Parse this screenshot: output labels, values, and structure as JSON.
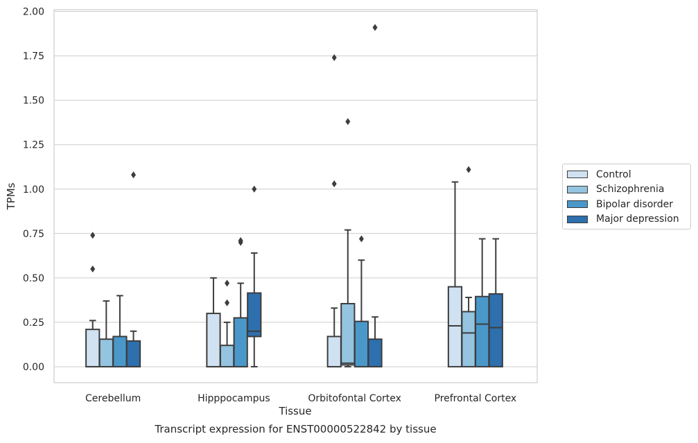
{
  "chart_data": {
    "type": "box",
    "xlabel": "Tissue",
    "ylabel": "TPMs",
    "caption": "Transcript expression for ENST00000522842 by tissue",
    "ylim": [
      -0.09,
      2.01
    ],
    "yticks": [
      "0.00",
      "0.25",
      "0.50",
      "0.75",
      "1.00",
      "1.25",
      "1.50",
      "1.75",
      "2.00"
    ],
    "grid": "horizontal",
    "legend_position": "right",
    "categories": [
      "Cerebellum",
      "Hipppocampus",
      "Orbitofontal Cortex",
      "Prefrontal Cortex"
    ],
    "series": [
      {
        "name": "Control",
        "color": "#d0e1f2",
        "boxes": [
          {
            "whisker_low": 0.0,
            "q1": 0.0,
            "median": 0.0,
            "q3": 0.21,
            "whisker_high": 0.26,
            "outliers": [
              0.55,
              0.74
            ]
          },
          {
            "whisker_low": 0.0,
            "q1": 0.0,
            "median": 0.0,
            "q3": 0.3,
            "whisker_high": 0.5,
            "outliers": []
          },
          {
            "whisker_low": 0.0,
            "q1": 0.0,
            "median": 0.0,
            "q3": 0.17,
            "whisker_high": 0.33,
            "outliers": [
              1.03,
              1.74
            ]
          },
          {
            "whisker_low": 0.0,
            "q1": 0.0,
            "median": 0.23,
            "q3": 0.45,
            "whisker_high": 1.04,
            "outliers": []
          }
        ]
      },
      {
        "name": "Schizophrenia",
        "color": "#94c4df",
        "boxes": [
          {
            "whisker_low": 0.0,
            "q1": 0.0,
            "median": 0.0,
            "q3": 0.155,
            "whisker_high": 0.37,
            "outliers": []
          },
          {
            "whisker_low": 0.0,
            "q1": 0.0,
            "median": 0.0,
            "q3": 0.12,
            "whisker_high": 0.25,
            "outliers": [
              0.36,
              0.47
            ]
          },
          {
            "whisker_low": 0.0,
            "q1": 0.01,
            "median": 0.02,
            "q3": 0.355,
            "whisker_high": 0.77,
            "outliers": [
              1.38
            ]
          },
          {
            "whisker_low": 0.0,
            "q1": 0.0,
            "median": 0.19,
            "q3": 0.31,
            "whisker_high": 0.39,
            "outliers": [
              1.11
            ]
          }
        ]
      },
      {
        "name": "Bipolar disorder",
        "color": "#4a98c9",
        "boxes": [
          {
            "whisker_low": 0.0,
            "q1": 0.0,
            "median": 0.0,
            "q3": 0.17,
            "whisker_high": 0.4,
            "outliers": []
          },
          {
            "whisker_low": 0.0,
            "q1": 0.0,
            "median": 0.0,
            "q3": 0.275,
            "whisker_high": 0.47,
            "outliers": [
              0.7,
              0.71
            ]
          },
          {
            "whisker_low": 0.0,
            "q1": 0.0,
            "median": 0.0,
            "q3": 0.255,
            "whisker_high": 0.6,
            "outliers": [
              0.72
            ]
          },
          {
            "whisker_low": 0.0,
            "q1": 0.0,
            "median": 0.24,
            "q3": 0.395,
            "whisker_high": 0.72,
            "outliers": []
          }
        ]
      },
      {
        "name": "Major depression",
        "color": "#2e6fae",
        "boxes": [
          {
            "whisker_low": 0.0,
            "q1": 0.0,
            "median": 0.0,
            "q3": 0.145,
            "whisker_high": 0.2,
            "outliers": [
              1.08
            ]
          },
          {
            "whisker_low": 0.0,
            "q1": 0.17,
            "median": 0.2,
            "q3": 0.415,
            "whisker_high": 0.64,
            "outliers": [
              1.0
            ]
          },
          {
            "whisker_low": 0.0,
            "q1": 0.0,
            "median": 0.0,
            "q3": 0.155,
            "whisker_high": 0.28,
            "outliers": [
              1.91
            ]
          },
          {
            "whisker_low": 0.0,
            "q1": 0.0,
            "median": 0.22,
            "q3": 0.41,
            "whisker_high": 0.72,
            "outliers": []
          }
        ]
      }
    ]
  }
}
